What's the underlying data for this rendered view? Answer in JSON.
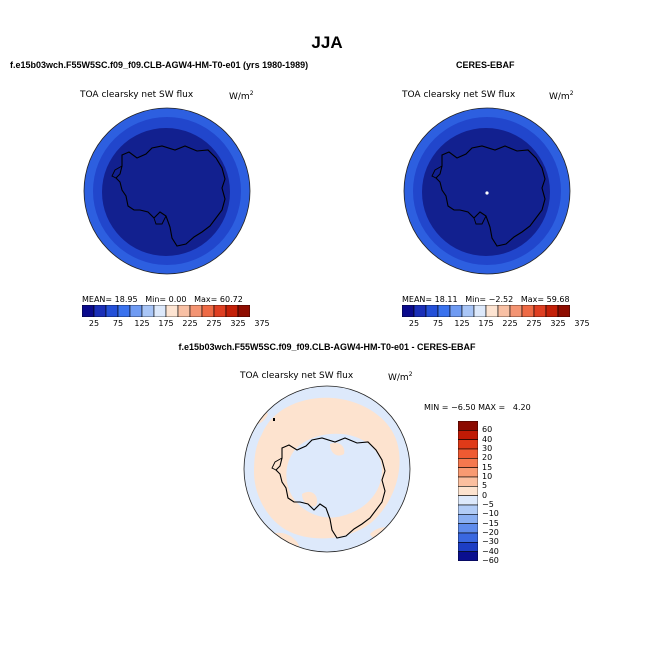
{
  "title": "JJA",
  "panels": [
    {
      "title": "f.e15b03wch.F55W5SC.f09_f09.CLB-AGW4-HM-T0-e01 (yrs 1980-1989)",
      "variable": "TOA clearsky net SW flux",
      "units_base": "W/m",
      "units_exp": "2",
      "stats": {
        "mean_label": "MEAN=",
        "mean": "18.95",
        "min_label": "Min=",
        "min": "0.00",
        "max_label": "Max=",
        "max": "60.72"
      }
    },
    {
      "title": "CERES-EBAF",
      "variable": "TOA clearsky net SW flux",
      "units_base": "W/m",
      "units_exp": "2",
      "stats": {
        "mean_label": "MEAN=",
        "mean": "18.11",
        "min_label": "Min=",
        "min": "−2.52",
        "max_label": "Max=",
        "max": "59.68"
      }
    },
    {
      "title": "f.e15b03wch.F55W5SC.f09_f09.CLB-AGW4-HM-T0-e01 - CERES-EBAF",
      "variable": "TOA clearsky net SW flux",
      "units_base": "W/m",
      "units_exp": "2",
      "stats": {
        "min_label": "MIN =",
        "min": "−6.50",
        "max_label": "MAX =",
        "max": "4.20"
      }
    }
  ],
  "abs_colorbar": {
    "labels": [
      "25",
      "75",
      "125",
      "175",
      "225",
      "275",
      "325",
      "375"
    ],
    "colors": [
      "#0a0a8c",
      "#1a2fb8",
      "#2450d8",
      "#3a72ee",
      "#6f9bf3",
      "#a9c6f7",
      "#dde9fb",
      "#fde4d2",
      "#f8c0a4",
      "#f49472",
      "#ee6a45",
      "#df3f22",
      "#c42008",
      "#8e0c00"
    ]
  },
  "diff_colorbar": {
    "labels": [
      "60",
      "40",
      "30",
      "20",
      "15",
      "10",
      "5",
      "0",
      "−5",
      "−10",
      "−15",
      "−20",
      "−30",
      "−40",
      "−60"
    ],
    "colors": [
      "#8b0a00",
      "#c01a05",
      "#df3a18",
      "#ef5a32",
      "#f5784e",
      "#f89a72",
      "#fbbf9f",
      "#fde3cf",
      "#dde9fb",
      "#b2ccf6",
      "#8aaff2",
      "#5f8cec",
      "#3a68e0",
      "#1d3ec4",
      "#0a0f8f"
    ]
  }
}
